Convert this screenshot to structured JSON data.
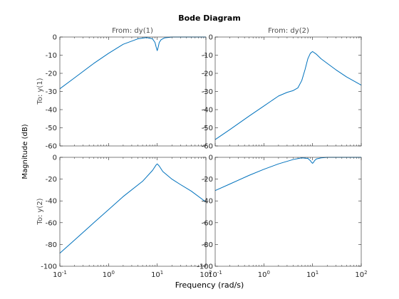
{
  "chart_data": {
    "type": "line",
    "title": "Bode Diagram",
    "xlabel": "Frequency  (rad/s)",
    "ylabel": "Magnitude (dB)",
    "x_scale": "log",
    "grid": false,
    "series_color": "#0072BD",
    "columns": [
      "From: dy(1)",
      "From: dy(2)"
    ],
    "rows": [
      "To: y(1)",
      "To: y(2)"
    ],
    "row_ylims": [
      [
        -60,
        0
      ],
      [
        -100,
        0
      ]
    ],
    "row_yticks": [
      [
        0,
        -10,
        -20,
        -30,
        -40,
        -50,
        -60
      ],
      [
        0,
        -20,
        -40,
        -60,
        -80,
        -100
      ]
    ],
    "xlim": [
      0.1,
      100
    ],
    "xticks": [
      {
        "value": 0.1,
        "base": "10",
        "exp": "-1"
      },
      {
        "value": 1,
        "base": "10",
        "exp": "0"
      },
      {
        "value": 10,
        "base": "10",
        "exp": "1"
      },
      {
        "value": 100,
        "base": "10",
        "exp": "2"
      }
    ],
    "panels": [
      {
        "row": 0,
        "col": 0,
        "x": [
          0.1,
          0.2,
          0.5,
          1,
          2,
          4,
          6,
          8,
          9,
          9.5,
          10,
          10.5,
          11,
          12,
          14,
          20,
          50,
          100
        ],
        "y": [
          -28.5,
          -22.5,
          -14.5,
          -9,
          -4,
          -1,
          -0.3,
          -1,
          -3,
          -5.5,
          -7.5,
          -5.5,
          -3,
          -1.5,
          -0.5,
          0,
          0,
          0
        ]
      },
      {
        "row": 0,
        "col": 1,
        "x": [
          0.1,
          0.2,
          0.5,
          1,
          2,
          3,
          4,
          5,
          6,
          7,
          8,
          9,
          10,
          12,
          15,
          20,
          30,
          50,
          100
        ],
        "y": [
          -56.5,
          -51,
          -43.5,
          -38,
          -32.5,
          -30.5,
          -29.5,
          -28,
          -24,
          -18,
          -12,
          -9,
          -8,
          -9.5,
          -12,
          -14.5,
          -18,
          -22,
          -26.5
        ]
      },
      {
        "row": 1,
        "col": 0,
        "x": [
          0.1,
          0.2,
          0.5,
          1,
          2,
          5,
          8,
          9.5,
          10,
          11,
          13,
          20,
          30,
          50,
          100
        ],
        "y": [
          -88,
          -76,
          -60,
          -48,
          -36,
          -22,
          -12,
          -7,
          -6,
          -8,
          -13,
          -20,
          -25,
          -31,
          -41
        ]
      },
      {
        "row": 1,
        "col": 1,
        "x": [
          0.1,
          0.2,
          0.5,
          1,
          2,
          4,
          6,
          8,
          9,
          9.5,
          10,
          10.5,
          11,
          12,
          15,
          20,
          50,
          100
        ],
        "y": [
          -30.5,
          -24.5,
          -16.5,
          -11,
          -6,
          -2,
          -0.5,
          -1,
          -3,
          -4.5,
          -5.5,
          -4.5,
          -3,
          -1.5,
          -0.5,
          0,
          0,
          0
        ]
      }
    ]
  }
}
